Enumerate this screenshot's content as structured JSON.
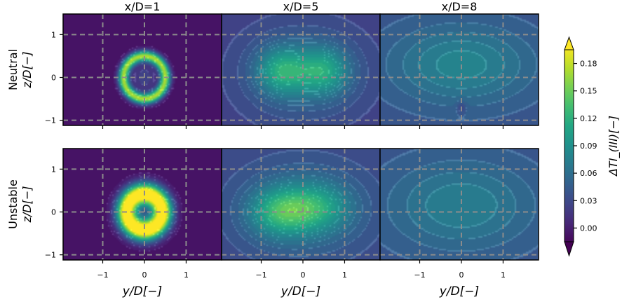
{
  "chart_data": {
    "type": "heatmap",
    "columns": [
      "x/D=1",
      "x/D=5",
      "x/D=8"
    ],
    "rows": [
      {
        "label": "Neutral",
        "ylabel": "z/D[−]"
      },
      {
        "label": "Unstable",
        "ylabel": "z/D[−]"
      }
    ],
    "xlabel": "y/D[−]",
    "xticks": [
      "−1",
      "0",
      "1"
    ],
    "xtick_values": [
      -1,
      0,
      1
    ],
    "yticks": [
      "1",
      "0",
      "−1"
    ],
    "ytick_values": [
      1,
      0,
      -1
    ],
    "xlim": [
      -1.95,
      1.85
    ],
    "ylim": [
      -1.12,
      1.48
    ],
    "gridlines_x": [
      -1,
      0,
      1
    ],
    "gridlines_y": [
      1,
      0,
      -1
    ],
    "grid": true,
    "colorbar": {
      "label": "ΔTI_(III)[−]",
      "ticks": [
        "0.18",
        "0.15",
        "0.12",
        "0.09",
        "0.06",
        "0.03",
        "0.00"
      ],
      "tick_values": [
        0.18,
        0.15,
        0.12,
        0.09,
        0.06,
        0.03,
        0.0
      ],
      "range": [
        -0.015,
        0.195
      ],
      "colormap": "viridis",
      "extend": "both"
    },
    "panels": [
      {
        "row": 0,
        "col": 0,
        "ambient": -0.005,
        "blobs": [
          {
            "type": "ring",
            "cy": 0,
            "cz": 0,
            "r": 0.5,
            "w": 0.09,
            "amp": 0.17
          },
          {
            "type": "gauss",
            "cy": 0,
            "cz": 0,
            "sy": 0.2,
            "sz": 0.25,
            "amp": 0.035
          }
        ]
      },
      {
        "row": 0,
        "col": 1,
        "ambient": 0.025,
        "blobs": [
          {
            "type": "gauss",
            "cy": -0.5,
            "cz": 0.15,
            "sy": 0.42,
            "sz": 0.38,
            "amp": 0.065
          },
          {
            "type": "gauss",
            "cy": 0.5,
            "cz": 0.15,
            "sy": 0.42,
            "sz": 0.38,
            "amp": 0.06
          },
          {
            "type": "gauss",
            "cy": 0,
            "cz": 0.1,
            "sy": 1.0,
            "sz": 0.75,
            "amp": 0.035
          }
        ]
      },
      {
        "row": 0,
        "col": 2,
        "ambient": 0.04,
        "blobs": [
          {
            "type": "gauss",
            "cy": 0,
            "cz": 0.3,
            "sy": 1.2,
            "sz": 0.65,
            "amp": 0.04
          },
          {
            "type": "gauss",
            "cy": 0,
            "cz": -0.7,
            "sy": 0.08,
            "sz": 0.1,
            "amp": -0.02
          }
        ]
      },
      {
        "row": 1,
        "col": 0,
        "ambient": -0.005,
        "blobs": [
          {
            "type": "ring",
            "cy": 0,
            "cz": 0,
            "r": 0.42,
            "w": 0.18,
            "amp": 0.23
          },
          {
            "type": "gauss",
            "cy": 0,
            "cz": 0,
            "sy": 0.15,
            "sz": 0.3,
            "amp": 0.03
          }
        ]
      },
      {
        "row": 1,
        "col": 1,
        "ambient": 0.03,
        "blobs": [
          {
            "type": "gauss",
            "cy": -0.55,
            "cz": 0,
            "sy": 0.5,
            "sz": 0.38,
            "amp": 0.065
          },
          {
            "type": "gauss",
            "cy": 0.3,
            "cz": 0.1,
            "sy": 0.55,
            "sz": 0.38,
            "amp": 0.055
          },
          {
            "type": "gauss",
            "cy": 0,
            "cz": 0.05,
            "sy": 1.15,
            "sz": 0.8,
            "amp": 0.035
          }
        ]
      },
      {
        "row": 1,
        "col": 2,
        "ambient": 0.04,
        "blobs": [
          {
            "type": "gauss",
            "cy": 0,
            "cz": 0.15,
            "sy": 1.25,
            "sz": 0.75,
            "amp": 0.035
          }
        ]
      }
    ]
  }
}
